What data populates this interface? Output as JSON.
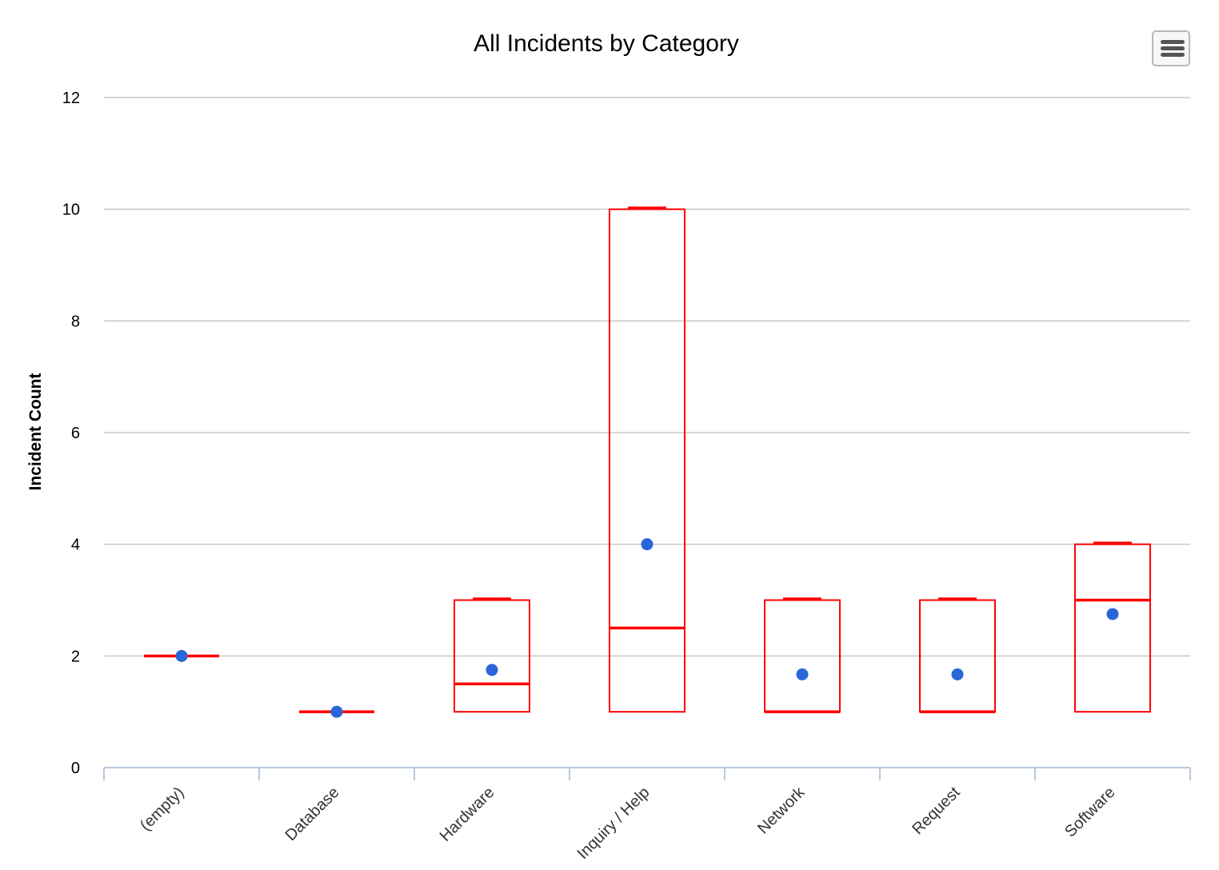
{
  "chart_data": {
    "type": "boxplot",
    "title": "All Incidents by Category",
    "xlabel": "",
    "ylabel": "Incident Count",
    "ylim": [
      0,
      12
    ],
    "yticks": [
      0,
      2,
      4,
      6,
      8,
      10,
      12
    ],
    "grid": true,
    "categories": [
      "(empty)",
      "Database",
      "Hardware",
      "Inquiry / Help",
      "Network",
      "Request",
      "Software"
    ],
    "boxes": [
      {
        "category": "(empty)",
        "min": 2,
        "q1": 2,
        "median": 2,
        "q3": 2,
        "max": 2,
        "mean": 2
      },
      {
        "category": "Database",
        "min": 1,
        "q1": 1,
        "median": 1,
        "q3": 1,
        "max": 1,
        "mean": 1
      },
      {
        "category": "Hardware",
        "min": 1,
        "q1": 1,
        "median": 1.5,
        "q3": 3,
        "max": 3,
        "mean": 1.75
      },
      {
        "category": "Inquiry / Help",
        "min": 1,
        "q1": 1,
        "median": 2.5,
        "q3": 10,
        "max": 10,
        "mean": 4
      },
      {
        "category": "Network",
        "min": 1,
        "q1": 1,
        "median": 1,
        "q3": 3,
        "max": 3,
        "mean": 1.67
      },
      {
        "category": "Request",
        "min": 1,
        "q1": 1,
        "median": 1,
        "q3": 3,
        "max": 3,
        "mean": 1.67
      },
      {
        "category": "Software",
        "min": 1,
        "q1": 1,
        "median": 3,
        "q3": 4,
        "max": 4,
        "mean": 2.75
      }
    ],
    "colors": {
      "box": "#ff0000",
      "mean_marker": "#2a66d9",
      "grid": "#c8c8c8",
      "axis": "#b9c8de"
    }
  },
  "toolbar": {
    "menu_icon": "hamburger-menu-icon"
  }
}
